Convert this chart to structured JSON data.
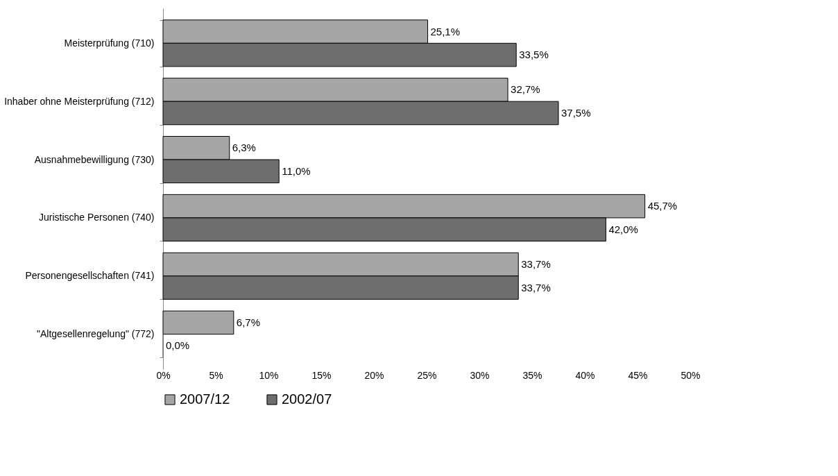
{
  "chart_data": {
    "type": "bar",
    "orientation": "horizontal",
    "categories": [
      "Meisterprüfung (710)",
      "Inhaber ohne Meisterprüfung (712)",
      "Ausnahmebewilligung (730)",
      "Juristische Personen (740)",
      "Personengesellschaften (741)",
      "\"Altgesellenregelung\" (772)"
    ],
    "series": [
      {
        "name": "2007/12",
        "color": "#a6a6a6",
        "values": [
          25.1,
          32.7,
          6.3,
          45.7,
          33.7,
          6.7
        ],
        "value_labels": [
          "25,1%",
          "32,7%",
          "6,3%",
          "45,7%",
          "33,7%",
          "6,7%"
        ]
      },
      {
        "name": "2002/07",
        "color": "#6e6e6e",
        "values": [
          33.5,
          37.5,
          11.0,
          42.0,
          33.7,
          0.0
        ],
        "value_labels": [
          "33,5%",
          "37,5%",
          "11,0%",
          "42,0%",
          "33,7%",
          "0,0%"
        ]
      }
    ],
    "xlim": [
      0,
      50
    ],
    "xticks": [
      {
        "value": 0,
        "label": "0%"
      },
      {
        "value": 5,
        "label": "5%"
      },
      {
        "value": 10,
        "label": "10%"
      },
      {
        "value": 15,
        "label": "15%"
      },
      {
        "value": 20,
        "label": "20%"
      },
      {
        "value": 25,
        "label": "25%"
      },
      {
        "value": 30,
        "label": "30%"
      },
      {
        "value": 35,
        "label": "35%"
      },
      {
        "value": 40,
        "label": "40%"
      },
      {
        "value": 45,
        "label": "45%"
      },
      {
        "value": 50,
        "label": "50%"
      }
    ],
    "grid": false,
    "legend": "bottom"
  }
}
